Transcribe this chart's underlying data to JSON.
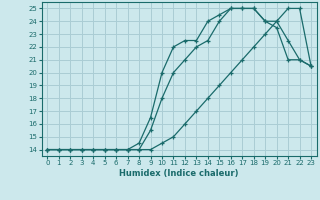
{
  "xlabel": "Humidex (Indice chaleur)",
  "ylabel": "",
  "bg_color": "#cce8ec",
  "grid_color": "#aacdd4",
  "line_color": "#1a6b6b",
  "xlim": [
    -0.5,
    23.5
  ],
  "ylim": [
    13.5,
    25.5
  ],
  "xticks": [
    0,
    1,
    2,
    3,
    4,
    5,
    6,
    7,
    8,
    9,
    10,
    11,
    12,
    13,
    14,
    15,
    16,
    17,
    18,
    19,
    20,
    21,
    22,
    23
  ],
  "yticks": [
    14,
    15,
    16,
    17,
    18,
    19,
    20,
    21,
    22,
    23,
    24,
    25
  ],
  "line1_x": [
    0,
    1,
    2,
    3,
    4,
    5,
    6,
    7,
    8,
    9,
    10,
    11,
    12,
    13,
    14,
    15,
    16,
    17,
    18,
    19,
    20,
    21,
    22,
    23
  ],
  "line1_y": [
    14,
    14,
    14,
    14,
    14,
    14,
    14,
    14,
    14,
    14,
    14.5,
    15,
    16,
    17,
    18,
    19,
    20,
    21,
    22,
    23,
    24,
    25,
    25,
    20.5
  ],
  "line2_x": [
    0,
    1,
    2,
    3,
    4,
    5,
    6,
    7,
    8,
    9,
    10,
    11,
    12,
    13,
    14,
    15,
    16,
    17,
    18,
    19,
    20,
    21,
    22,
    23
  ],
  "line2_y": [
    14,
    14,
    14,
    14,
    14,
    14,
    14,
    14,
    14,
    15.5,
    18,
    20,
    21,
    22,
    22.5,
    24,
    25,
    25,
    25,
    24,
    23.5,
    21,
    21,
    20.5
  ],
  "line3_x": [
    0,
    1,
    2,
    3,
    4,
    5,
    6,
    7,
    8,
    9,
    10,
    11,
    12,
    13,
    14,
    15,
    16,
    17,
    18,
    19,
    20,
    21,
    22,
    23
  ],
  "line3_y": [
    14,
    14,
    14,
    14,
    14,
    14,
    14,
    14,
    14.5,
    16.5,
    20,
    22,
    22.5,
    22.5,
    24,
    24.5,
    25,
    25,
    25,
    24,
    24,
    22.5,
    21,
    20.5
  ]
}
